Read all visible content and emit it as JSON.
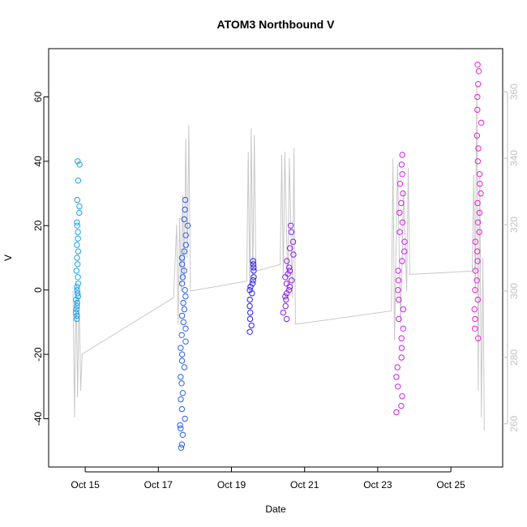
{
  "chart_data": {
    "type": "scatter",
    "title": "ATOM3 Northbound V",
    "xlabel": "Date",
    "ylabel": "V",
    "xlim": [
      "2013-10-14T00:00",
      "2013-10-26T10:00"
    ],
    "ylim": [
      -55,
      75
    ],
    "yticks": [
      -40,
      -20,
      0,
      20,
      40,
      60
    ],
    "xticks": [
      {
        "date": "2013-10-15T00:00",
        "label": "Oct 15"
      },
      {
        "date": "2013-10-17T00:00",
        "label": "Oct 17"
      },
      {
        "date": "2013-10-19T00:00",
        "label": "Oct 19"
      },
      {
        "date": "2013-10-21T00:00",
        "label": "Oct 21"
      },
      {
        "date": "2013-10-23T00:00",
        "label": "Oct 23"
      },
      {
        "date": "2013-10-25T00:00",
        "label": "Oct 25"
      }
    ],
    "secondary_axis": {
      "ylim": [
        247,
        373
      ],
      "yticks": [
        260,
        280,
        300,
        320,
        340,
        360
      ],
      "color": "#c0c0c0"
    },
    "series": [
      {
        "color": "#1aa3f0",
        "marker": "open-circle",
        "x_range": [
          "2013-10-14T17:00",
          "2013-10-14T21:00"
        ],
        "values": [
          -9,
          -8,
          -7,
          -6,
          -5,
          -4,
          -3,
          -2,
          -1,
          0,
          1,
          2,
          4,
          6,
          8,
          10,
          12,
          14,
          16,
          18,
          20,
          21,
          24,
          26,
          28,
          34,
          39,
          40
        ]
      },
      {
        "color": "#2c5ef0",
        "marker": "open-circle",
        "x_range": [
          "2013-10-17T12:00",
          "2013-10-17T21:00"
        ],
        "values": [
          -49,
          -48,
          -45,
          -43,
          -42,
          -40,
          -37,
          -34,
          -32,
          -29,
          -27,
          -24,
          -22,
          -20,
          -18,
          -16,
          -14,
          -12,
          -10,
          -8,
          -6,
          -4,
          -2,
          0,
          2,
          4,
          6,
          8,
          10,
          12,
          14,
          17,
          20,
          22,
          25,
          28
        ]
      },
      {
        "color": "#2a1df0",
        "marker": "open-circle",
        "x_range": [
          "2013-10-19T10:00",
          "2013-10-19T16:00"
        ],
        "values": [
          -13,
          -11,
          -9,
          -7,
          -5,
          -3,
          -1,
          0,
          1,
          2,
          3,
          4,
          6,
          7,
          8,
          9
        ]
      },
      {
        "color": "#8a1cf0",
        "marker": "open-circle",
        "x_range": [
          "2013-10-20T08:00",
          "2013-10-20T19:00"
        ],
        "values": [
          -9,
          -7,
          -5,
          -3,
          -2,
          -1,
          0,
          1,
          2,
          3,
          4,
          5,
          6,
          7,
          9,
          11,
          13,
          15,
          18,
          20
        ]
      },
      {
        "color": "#d21cf0",
        "marker": "open-circle",
        "x_range": [
          "2013-10-23T10:00",
          "2013-10-23T21:00"
        ],
        "values": [
          -38,
          -36,
          -33,
          -30,
          -27,
          -24,
          -21,
          -18,
          -15,
          -12,
          -9,
          -6,
          -3,
          0,
          3,
          6,
          9,
          12,
          15,
          18,
          21,
          24,
          27,
          30,
          33,
          36,
          39,
          42
        ]
      },
      {
        "color": "#ee1cd8",
        "marker": "open-circle",
        "x_range": [
          "2013-10-25T14:00",
          "2013-10-25T22:00"
        ],
        "values": [
          -15,
          -12,
          -9,
          -6,
          -3,
          0,
          3,
          6,
          9,
          12,
          15,
          18,
          21,
          24,
          27,
          30,
          33,
          36,
          40,
          44,
          48,
          52,
          56,
          60,
          64,
          68,
          70
        ]
      }
    ],
    "secondary_series": {
      "color": "#c8c8c8",
      "type": "line",
      "axis": "right",
      "vertices": [
        [
          "2013-10-14T16:00",
          300
        ],
        [
          "2013-10-14T17:00",
          262
        ],
        [
          "2013-10-14T18:00",
          303
        ],
        [
          "2013-10-14T19:00",
          268
        ],
        [
          "2013-10-14T20:00",
          300
        ],
        [
          "2013-10-14T21:00",
          270
        ],
        [
          "2013-10-14T22:00",
          281
        ],
        [
          "2013-10-17T10:00",
          298
        ],
        [
          "2013-10-17T12:00",
          320
        ],
        [
          "2013-10-17T13:00",
          290
        ],
        [
          "2013-10-17T14:00",
          322
        ],
        [
          "2013-10-17T15:00",
          300
        ],
        [
          "2013-10-17T16:00",
          329
        ],
        [
          "2013-10-17T17:00",
          302
        ],
        [
          "2013-10-17T18:00",
          346
        ],
        [
          "2013-10-17T19:00",
          310
        ],
        [
          "2013-10-17T20:00",
          350
        ],
        [
          "2013-10-17T21:00",
          300
        ],
        [
          "2013-10-19T10:00",
          303
        ],
        [
          "2013-10-19T11:00",
          342
        ],
        [
          "2013-10-19T12:00",
          300
        ],
        [
          "2013-10-19T13:00",
          349
        ],
        [
          "2013-10-19T14:00",
          304
        ],
        [
          "2013-10-19T15:00",
          347
        ],
        [
          "2013-10-19T16:00",
          306
        ],
        [
          "2013-10-20T08:00",
          308
        ],
        [
          "2013-10-20T09:00",
          341
        ],
        [
          "2013-10-20T10:00",
          305
        ],
        [
          "2013-10-20T11:00",
          342
        ],
        [
          "2013-10-20T13:00",
          300
        ],
        [
          "2013-10-20T14:00",
          340
        ],
        [
          "2013-10-20T16:00",
          298
        ],
        [
          "2013-10-20T17:00",
          343
        ],
        [
          "2013-10-20T18:00",
          290
        ],
        [
          "2013-10-23T09:00",
          294
        ],
        [
          "2013-10-23T10:00",
          340
        ],
        [
          "2013-10-23T11:00",
          285
        ],
        [
          "2013-10-23T13:00",
          338
        ],
        [
          "2013-10-23T15:00",
          290
        ],
        [
          "2013-10-23T17:00",
          330
        ],
        [
          "2013-10-23T19:00",
          300
        ],
        [
          "2013-10-23T20:00",
          337
        ],
        [
          "2013-10-23T21:00",
          305
        ],
        [
          "2013-10-25T14:00",
          306
        ],
        [
          "2013-10-25T15:00",
          335
        ],
        [
          "2013-10-25T16:00",
          300
        ],
        [
          "2013-10-25T17:00",
          362
        ],
        [
          "2013-10-25T18:00",
          270
        ],
        [
          "2013-10-25T19:00",
          335
        ],
        [
          "2013-10-25T20:00",
          262
        ],
        [
          "2013-10-25T21:00",
          310
        ],
        [
          "2013-10-25T22:00",
          258
        ]
      ]
    }
  }
}
